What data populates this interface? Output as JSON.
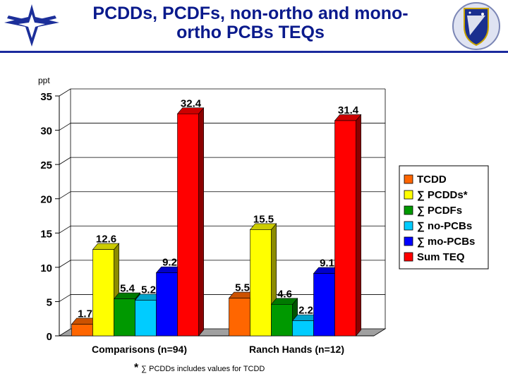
{
  "slide": {
    "title_line1": "PCDDs, PCDFs, non-ortho and mono-",
    "title_line2": "ortho PCBs TEQs",
    "footnote_marker": "*",
    "footnote_text": "∑ PCDDs includes values for TCDD"
  },
  "logos": {
    "left": "air-force-wings-logo",
    "right": "shield-emblem-logo"
  },
  "chart_data": {
    "type": "bar",
    "title": "",
    "xlabel": "",
    "ylabel": "ppt",
    "ylim": [
      0,
      35
    ],
    "yticks": [
      0,
      5,
      10,
      15,
      20,
      25,
      30,
      35
    ],
    "grid": true,
    "legend_position": "right",
    "categories": [
      "Comparisons (n=94)",
      "Ranch Hands (n=12)"
    ],
    "series": [
      {
        "name": "TCDD",
        "color": "#ff6600",
        "values": [
          1.7,
          5.5
        ],
        "labels": [
          "1.7",
          "5.5"
        ]
      },
      {
        "name": "∑ PCDDs*",
        "color": "#ffff00",
        "values": [
          12.6,
          15.5
        ],
        "labels": [
          "12.6",
          "15.5"
        ]
      },
      {
        "name": "∑ PCDFs",
        "color": "#009900",
        "values": [
          5.4,
          4.6
        ],
        "labels": [
          "5.4",
          "4.6"
        ]
      },
      {
        "name": "∑ no-PCBs",
        "color": "#00ccff",
        "values": [
          5.2,
          2.2
        ],
        "labels": [
          "5.2",
          "2.2"
        ]
      },
      {
        "name": "∑ mo-PCBs",
        "color": "#0000ff",
        "values": [
          9.2,
          9.1
        ],
        "labels": [
          "9.2",
          "9.1"
        ]
      },
      {
        "name": "Sum TEQ",
        "color": "#ff0000",
        "values": [
          32.4,
          31.4
        ],
        "labels": [
          "32.4",
          "31.4"
        ]
      }
    ]
  }
}
